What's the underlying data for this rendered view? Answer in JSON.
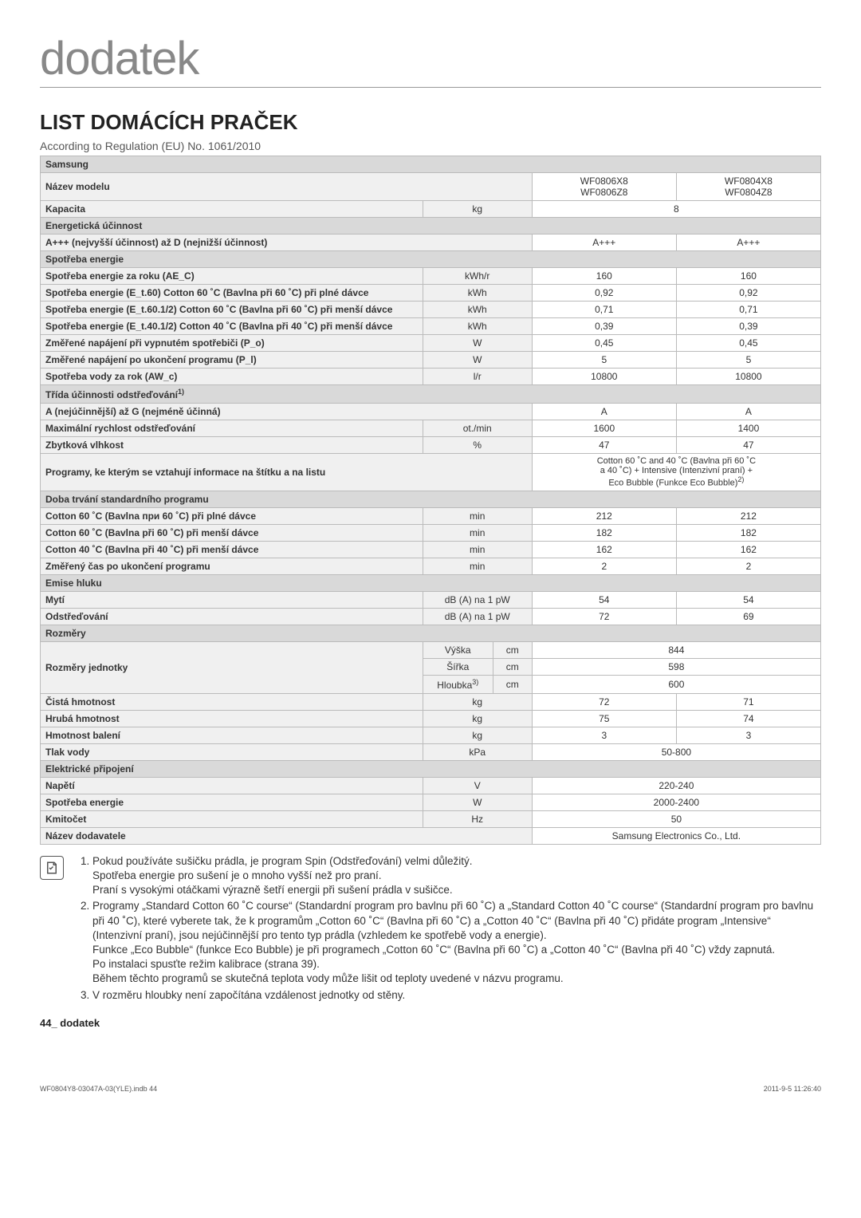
{
  "page": {
    "main_title": "dodatek",
    "section_title": "LIST DOMÁCÍCH PRAČEK",
    "regulation": "According to Regulation (EU) No. 1061/2010",
    "footer_page": "44_ dodatek",
    "bottom_left": "WF0804Y8-03047A-03(YLE).indb   44",
    "bottom_right": "2011-9-5   11:26:40"
  },
  "table": {
    "brand": "Samsung",
    "model_label": "Název modelu",
    "model1": "WF0806X8\nWF0806Z8",
    "model2": "WF0804X8\nWF0804Z8",
    "capacity_label": "Kapacita",
    "capacity_unit": "kg",
    "capacity_val": "8",
    "eff_header": "Energetická účinnost",
    "eff_label": "A+++ (nejvyšší účinnost) až D (nejnižší účinnost)",
    "eff_v1": "A+++",
    "eff_v2": "A+++",
    "energy_header": "Spotřeba energie",
    "rows_energy": [
      {
        "l": "Spotřeba energie za roku (AE_C)",
        "u": "kWh/r",
        "v1": "160",
        "v2": "160"
      },
      {
        "l": "Spotřeba energie (E_t.60) Cotton 60 ˚C (Bavlna při 60 ˚C) při plné dávce",
        "u": "kWh",
        "v1": "0,92",
        "v2": "0,92"
      },
      {
        "l": "Spotřeba energie (E_t.60.1/2) Cotton 60 ˚C (Bavlna při 60 ˚C) při menší dávce",
        "u": "kWh",
        "v1": "0,71",
        "v2": "0,71"
      },
      {
        "l": "Spotřeba energie (E_t.40.1/2) Cotton 40 ˚C (Bavlna při 40 ˚C) při menší dávce",
        "u": "kWh",
        "v1": "0,39",
        "v2": "0,39"
      },
      {
        "l": "Změřené napájení při vypnutém spotřebiči (P_o)",
        "u": "W",
        "v1": "0,45",
        "v2": "0,45"
      },
      {
        "l": "Změřené napájení po ukončení programu (P_l)",
        "u": "W",
        "v1": "5",
        "v2": "5"
      },
      {
        "l": "Spotřeba vody za rok (AW_c)",
        "u": "l/r",
        "v1": "10800",
        "v2": "10800"
      }
    ],
    "spin_header": "Třída účinnosti odstřeďování",
    "spin_sup": "1)",
    "rows_spin": [
      {
        "l": "A (nejúčinnější) až G (nejméně účinná)",
        "u": "",
        "v1": "A",
        "v2": "A"
      },
      {
        "l": "Maximální rychlost odstřeďování",
        "u": "ot./min",
        "v1": "1600",
        "v2": "1400"
      },
      {
        "l": "Zbytková vlhkost",
        "u": "%",
        "v1": "47",
        "v2": "47"
      }
    ],
    "programmes_label": "Programy, ke kterým se vztahují informace na štítku a na listu",
    "programmes_info_1": "Cotton 60 ˚C and 40 ˚C (Bavlna při 60 ˚C",
    "programmes_info_2": "a 40 ˚C) + Intensive (Intenzivní praní) +",
    "programmes_info_3": "Eco Bubble (Funkce Eco Bubble)",
    "programmes_sup": "2)",
    "duration_header": "Doba trvání standardního programu",
    "rows_duration": [
      {
        "l": "Cotton 60 ˚C (Bavlna при 60 ˚C) při plné dávce",
        "u": "min",
        "v1": "212",
        "v2": "212"
      },
      {
        "l": "Cotton 60 ˚C (Bavlna při 60 ˚C) při menší dávce",
        "u": "min",
        "v1": "182",
        "v2": "182"
      },
      {
        "l": "Cotton 40 ˚C (Bavlna při 40 ˚C) při menší dávce",
        "u": "min",
        "v1": "162",
        "v2": "162"
      },
      {
        "l": "Změřený čas po ukončení programu",
        "u": "min",
        "v1": "2",
        "v2": "2"
      }
    ],
    "noise_header": "Emise hluku",
    "rows_noise": [
      {
        "l": "Mytí",
        "u": "dB (A) na 1 pW",
        "v1": "54",
        "v2": "54"
      },
      {
        "l": "Odstřeďování",
        "u": "dB (A) na 1 pW",
        "v1": "72",
        "v2": "69"
      }
    ],
    "dim_header": "Rozměry",
    "dim_label": "Rozměry jednotky",
    "dim_rows": [
      {
        "l": "Výška",
        "u": "cm",
        "v": "844"
      },
      {
        "l": "Šířka",
        "u": "cm",
        "v": "598"
      },
      {
        "l": "Hloubka",
        "sup": "3)",
        "u": "cm",
        "v": "600"
      }
    ],
    "rows_weight": [
      {
        "l": "Čistá hmotnost",
        "u": "kg",
        "v1": "72",
        "v2": "71"
      },
      {
        "l": "Hrubá hmotnost",
        "u": "kg",
        "v1": "75",
        "v2": "74"
      },
      {
        "l": "Hmotnost balení",
        "u": "kg",
        "v1": "3",
        "v2": "3"
      }
    ],
    "pressure_label": "Tlak vody",
    "pressure_unit": "kPa",
    "pressure_val": "50-800",
    "elec_header": "Elektrické připojení",
    "rows_elec": [
      {
        "l": "Napětí",
        "u": "V",
        "v": "220-240"
      },
      {
        "l": "Spotřeba energie",
        "u": "W",
        "v": "2000-2400"
      },
      {
        "l": "Kmitočet",
        "u": "Hz",
        "v": "50"
      }
    ],
    "supplier_label": "Název dodavatele",
    "supplier_val": "Samsung Electronics Co., Ltd."
  },
  "notes": {
    "n1a": "Pokud používáte sušičku prádla, je program Spin (Odstřeďování) velmi důležitý.",
    "n1b": "Spotřeba energie pro sušení je o mnoho vyšší než pro praní.",
    "n1c": "Praní s vysokými otáčkami výrazně šetří energii při sušení prádla v sušičce.",
    "n2a": "Programy „Standard Cotton 60 ˚C course“ (Standardní program pro bavlnu při 60 ˚C) a „Standard Cotton 40 ˚C course“ (Standardní program pro bavlnu při 40 ˚C), které vyberete tak, že k programům „Cotton 60 ˚C“ (Bavlna při 60 ˚C) a „Cotton 40 ˚C“ (Bavlna při 40 ˚C) přidáte program „Intensive“ (Intenzivní praní), jsou nejúčinnější pro tento typ prádla (vzhledem ke spotřebě vody a energie).",
    "n2b": "Funkce „Eco Bubble“ (funkce Eco Bubble) je při programech „Cotton 60 ˚C“ (Bavlna při 60 ˚C) a „Cotton 40 ˚C“ (Bavlna při 40 ˚C) vždy zapnutá.",
    "n2c": "Po instalaci spusťte režim kalibrace (strana 39).",
    "n2d": "Během těchto programů se skutečná teplota vody může lišit od teploty uvedené v názvu programu.",
    "n3": "V rozměru hloubky není započítána vzdálenost jednotky od stěny."
  }
}
